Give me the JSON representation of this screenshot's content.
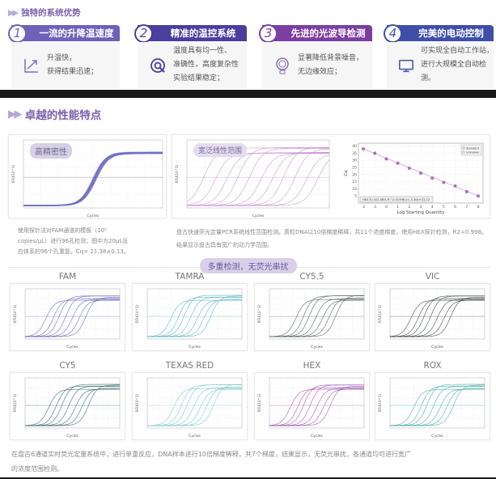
{
  "section1": {
    "title": "独特的系统优势"
  },
  "features": [
    {
      "num": "1",
      "title": "一流的升降温速度",
      "lines": [
        "升温快，",
        "获得结果迅速；"
      ],
      "icon": "trend-up-icon",
      "color": "#6d62b8"
    },
    {
      "num": "2",
      "title": "精准的温控系统",
      "lines": [
        "温度具有均一性、",
        "准确性，高度复杂性",
        "实验结果稳定；"
      ],
      "icon": "target-cursor-icon",
      "color": "#4a3f9c"
    },
    {
      "num": "3",
      "title": "先进的光波导检测",
      "lines": [
        "显著降低背景噪音，",
        "无边缘效应；"
      ],
      "icon": "light-bulb-icon",
      "color": "#7a3fa0"
    },
    {
      "num": "4",
      "title": "完美的电动控制",
      "lines": [
        "可实现全自动工作站，",
        "进行大规模全自动检测。"
      ],
      "icon": "monitor-icon",
      "color": "#3f4fa8"
    }
  ],
  "section2": {
    "title": "卓越的性能特点"
  },
  "precision": {
    "label": "高精密性",
    "xlabel": "Cycles",
    "ylabel": "RFU(10^3)",
    "color": "#6f72c2",
    "caption": [
      "使用探针法对FAM通道的模板（10⁵",
      "copies/μL）进行96孔检测；图中为20μL反",
      "应体系的96个孔重复。Cq= 21.38±0.13。"
    ]
  },
  "linearity": {
    "label": "宽泛线性范围",
    "xlabel": "Cycles",
    "ylabel": "RFU(10^3)",
    "color": "#c58ad0",
    "caption": [
      "盘古快速荧光定量PCR系统线性范围检测。质粒DNA以10倍梯度稀释，共11个浓度梯度，使用HEX探针检测，R2=0.998。",
      "结果显示盘古具有宽广的动力学范围。"
    ]
  },
  "chart_data": {
    "type": "scatter",
    "xlabel": "Log Starting Quantity",
    "ylabel": "Cq",
    "x": [
      -2,
      -1,
      0,
      1,
      2,
      3,
      4,
      5,
      6,
      7,
      8
    ],
    "y": [
      38,
      35,
      31,
      28,
      24.5,
      21,
      17.5,
      14.5,
      12,
      8,
      5
    ],
    "xlim": [
      -2,
      8
    ],
    "ylim": [
      0,
      42
    ],
    "xticks": [
      "-2",
      "-1",
      "0",
      "1",
      "2",
      "3",
      "4",
      "5",
      "6",
      "7",
      "8"
    ],
    "yticks": [
      "5",
      "10",
      "15",
      "20",
      "25",
      "30",
      "35",
      "40"
    ],
    "legend": [
      "Standard",
      "Unknown"
    ],
    "equation": "HEX E=101.08% R^2=0.998 y=-3.30x+31.12",
    "grid": true,
    "legend_position": "top-right",
    "color": "#b06cc0"
  },
  "multiplex": {
    "title": "多重检测，无荧光串扰",
    "channels": [
      {
        "name": "FAM",
        "color": "#6f6fc0"
      },
      {
        "name": "TAMRA",
        "color": "#5fb9c6"
      },
      {
        "name": "CY5.5",
        "color": "#5c6660"
      },
      {
        "name": "VIC",
        "color": "#4a4f52"
      },
      {
        "name": "CY5",
        "color": "#3f6f70"
      },
      {
        "name": "TEXAS RED",
        "color": "#7ccbc9"
      },
      {
        "name": "HEX",
        "color": "#a55cb6"
      },
      {
        "name": "ROX",
        "color": "#4fb1a6"
      }
    ],
    "xlabel": "Cycles",
    "ylabel": "RFU(10^3)",
    "caption": [
      "在盘古6通道实时荧光定量系统中，进行单重反应，DNA样本进行10倍梯度稀释，共7个梯度，结果显示，无荧光串扰，各通道均可进行宽广",
      "的浓度范围检测。"
    ]
  }
}
